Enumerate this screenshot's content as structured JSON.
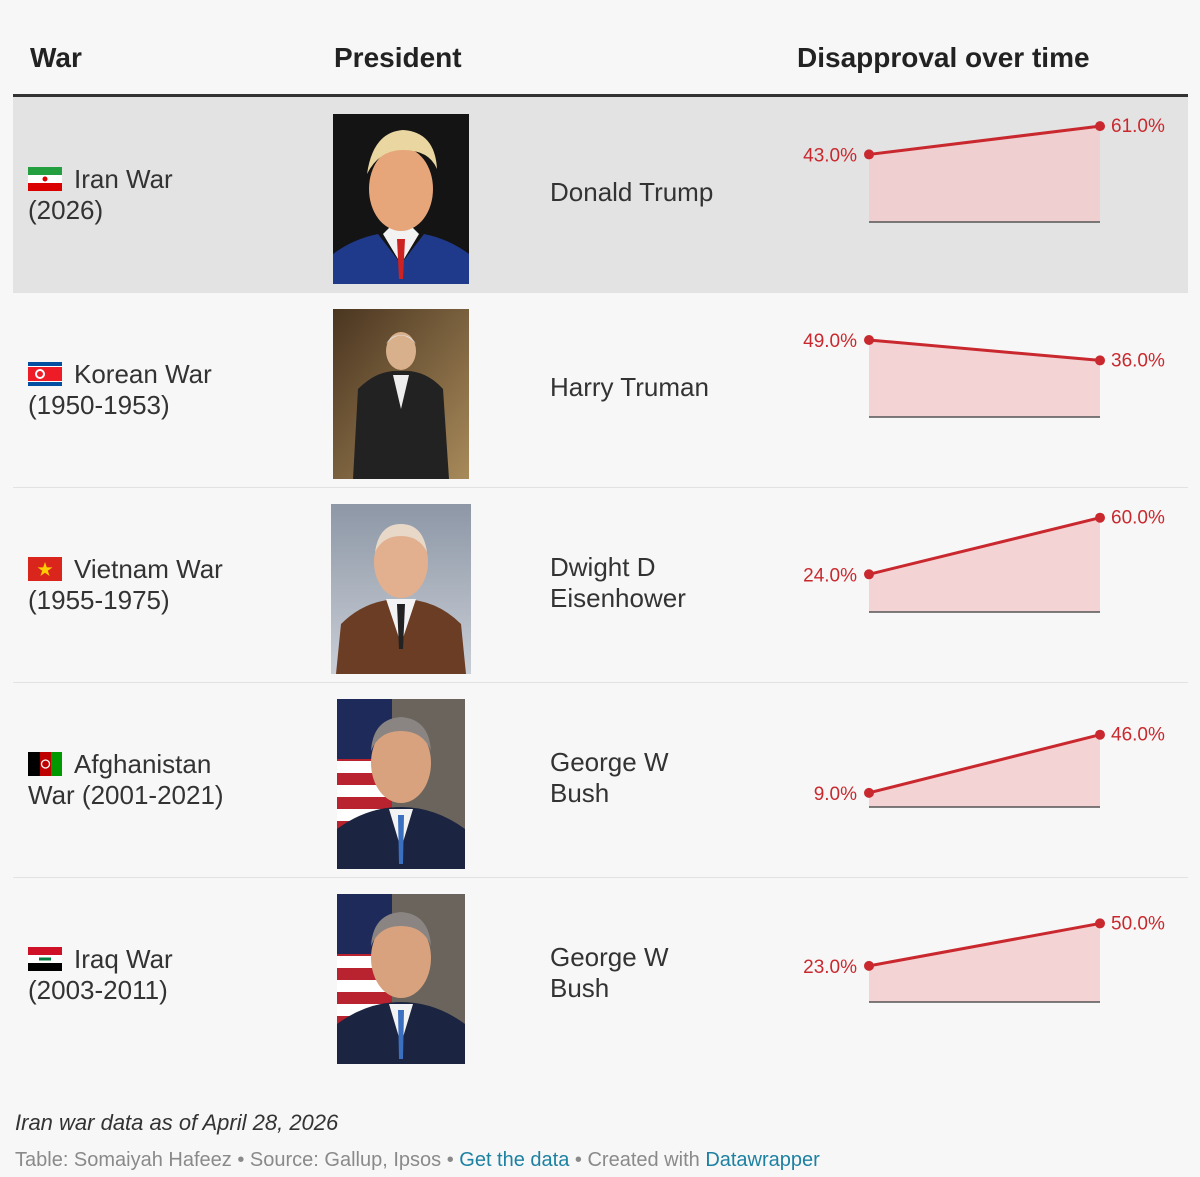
{
  "header": {
    "war": "War",
    "president": "President",
    "disapproval": "Disapproval over time"
  },
  "rows": [
    {
      "war_line1": "Iran War",
      "war_line2": "(2026)",
      "president_line1": "Donald Trump",
      "president_line2": "",
      "flag": "iran-flag",
      "start": 43.0,
      "end": 61.0,
      "start_label": "43.0%",
      "end_label": "61.0%"
    },
    {
      "war_line1": "Korean War",
      "war_line2": "(1950-1953)",
      "president_line1": "Harry Truman",
      "president_line2": "",
      "flag": "north-korea-flag",
      "start": 49.0,
      "end": 36.0,
      "start_label": "49.0%",
      "end_label": "36.0%"
    },
    {
      "war_line1": "Vietnam War",
      "war_line2": "(1955-1975)",
      "president_line1": "Dwight D",
      "president_line2": "Eisenhower",
      "flag": "vietnam-flag",
      "start": 24.0,
      "end": 60.0,
      "start_label": "24.0%",
      "end_label": "60.0%"
    },
    {
      "war_line1": "Afghanistan",
      "war_line2": "War (2001-2021)",
      "president_line1": "George W",
      "president_line2": "Bush",
      "flag": "afghanistan-flag",
      "start": 9.0,
      "end": 46.0,
      "start_label": "9.0%",
      "end_label": "46.0%"
    },
    {
      "war_line1": "Iraq War",
      "war_line2": "(2003-2011)",
      "president_line1": "George W",
      "president_line2": "Bush",
      "flag": "iraq-flag",
      "start": 23.0,
      "end": 50.0,
      "start_label": "23.0%",
      "end_label": "50.0%"
    }
  ],
  "chart_data": {
    "type": "table",
    "columns": [
      "War",
      "President",
      "Disapproval over time"
    ],
    "series": [
      {
        "name": "Iran War (2026)",
        "values": [
          43.0,
          61.0
        ]
      },
      {
        "name": "Korean War (1950-1953)",
        "values": [
          49.0,
          36.0
        ]
      },
      {
        "name": "Vietnam War (1955-1975)",
        "values": [
          24.0,
          60.0
        ]
      },
      {
        "name": "Afghanistan War (2001-2021)",
        "values": [
          9.0,
          46.0
        ]
      },
      {
        "name": "Iraq War (2003-2011)",
        "values": [
          23.0,
          50.0
        ]
      }
    ],
    "ylim": [
      0,
      70
    ]
  },
  "footer": {
    "note": "Iran war data as of April 28, 2026",
    "table_credit": "Table: Somaiyah Hafeez",
    "source": "Source: Gallup, Ipsos",
    "get_data": "Get the data",
    "created": "Created with",
    "datawrapper": "Datawrapper",
    "sep": " • "
  },
  "colors": {
    "line": "#c9292e",
    "fill": "#f1c9ca",
    "highlight": "#e3e3e3",
    "link": "#1d81a2"
  }
}
